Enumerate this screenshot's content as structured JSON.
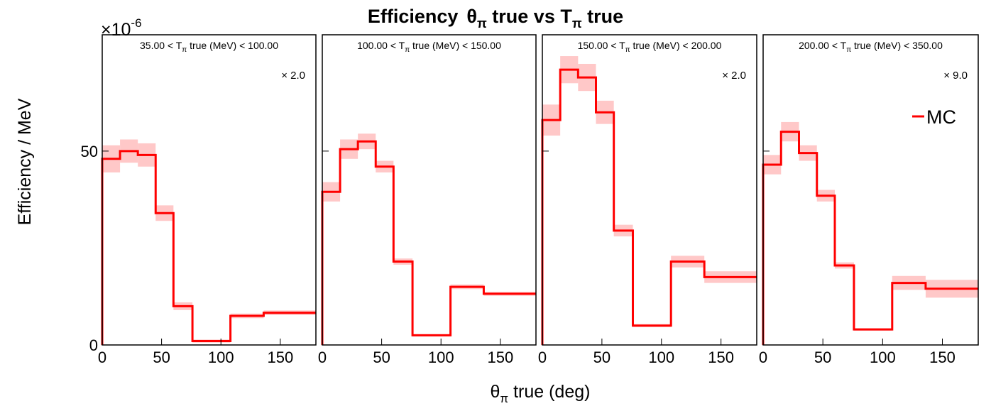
{
  "chart_data": {
    "type": "line",
    "title_main": "Efficiency",
    "title_theta": "θ",
    "title_theta_sub": "π",
    "title_mid": " true vs T",
    "title_t_sub": "π",
    "title_end": " true",
    "ylabel": "Efficiency / MeV",
    "xlabel_theta": "θ",
    "xlabel_sub": "π",
    "xlabel_rest": " true (deg)",
    "exponent_base": "×10",
    "exponent_power": "-6",
    "xlim": [
      0,
      180
    ],
    "ylim": [
      0,
      80
    ],
    "xticks": [
      "0",
      "50",
      "100",
      "150"
    ],
    "xtick_values": [
      0,
      50,
      100,
      150
    ],
    "yticks": [
      "0",
      "50"
    ],
    "ytick_values": [
      0,
      50
    ],
    "bin_edges": [
      0,
      15,
      30,
      45,
      60,
      76,
      108,
      136,
      180
    ],
    "legend": {
      "label": "MC",
      "color": "#ff0000",
      "position": "top-right"
    },
    "line_color": "#ff0000",
    "band_color": "#ffc8c8",
    "grid": false,
    "panels": [
      {
        "label_pre": "35.00 < T",
        "label_sub": "π",
        "label_post": " true (MeV) < 100.00",
        "scale": "× 2.0",
        "values": [
          48,
          50,
          49,
          34,
          10,
          1,
          7.5,
          8.3
        ],
        "errors": [
          3.5,
          3,
          3,
          2,
          1,
          0.4,
          0.6,
          0.6
        ]
      },
      {
        "label_pre": "100.00 < T",
        "label_sub": "π",
        "label_post": " true (MeV) < 150.00",
        "scale": "",
        "values": [
          39.5,
          50.5,
          52.5,
          46,
          21.5,
          2.5,
          15,
          13.2
        ],
        "errors": [
          2.5,
          2.5,
          2,
          1.5,
          0.8,
          0.3,
          0.6,
          0.5
        ]
      },
      {
        "label_pre": "150.00 < T",
        "label_sub": "π",
        "label_post": " true (MeV) < 200.00",
        "scale": "× 2.0",
        "values": [
          58,
          71,
          69,
          60,
          29.5,
          5,
          21.5,
          17.5
        ],
        "errors": [
          4,
          3.5,
          3.5,
          3,
          1.5,
          0.4,
          1.5,
          1.5
        ]
      },
      {
        "label_pre": "200.00 < T",
        "label_sub": "π",
        "label_post": " true (MeV) < 350.00",
        "scale": "× 9.0",
        "values": [
          46.5,
          55,
          49.5,
          38.5,
          20.5,
          4,
          16,
          14.5
        ],
        "errors": [
          2.5,
          2.5,
          2,
          1.5,
          0.8,
          0.3,
          1.8,
          2.3
        ]
      }
    ]
  }
}
